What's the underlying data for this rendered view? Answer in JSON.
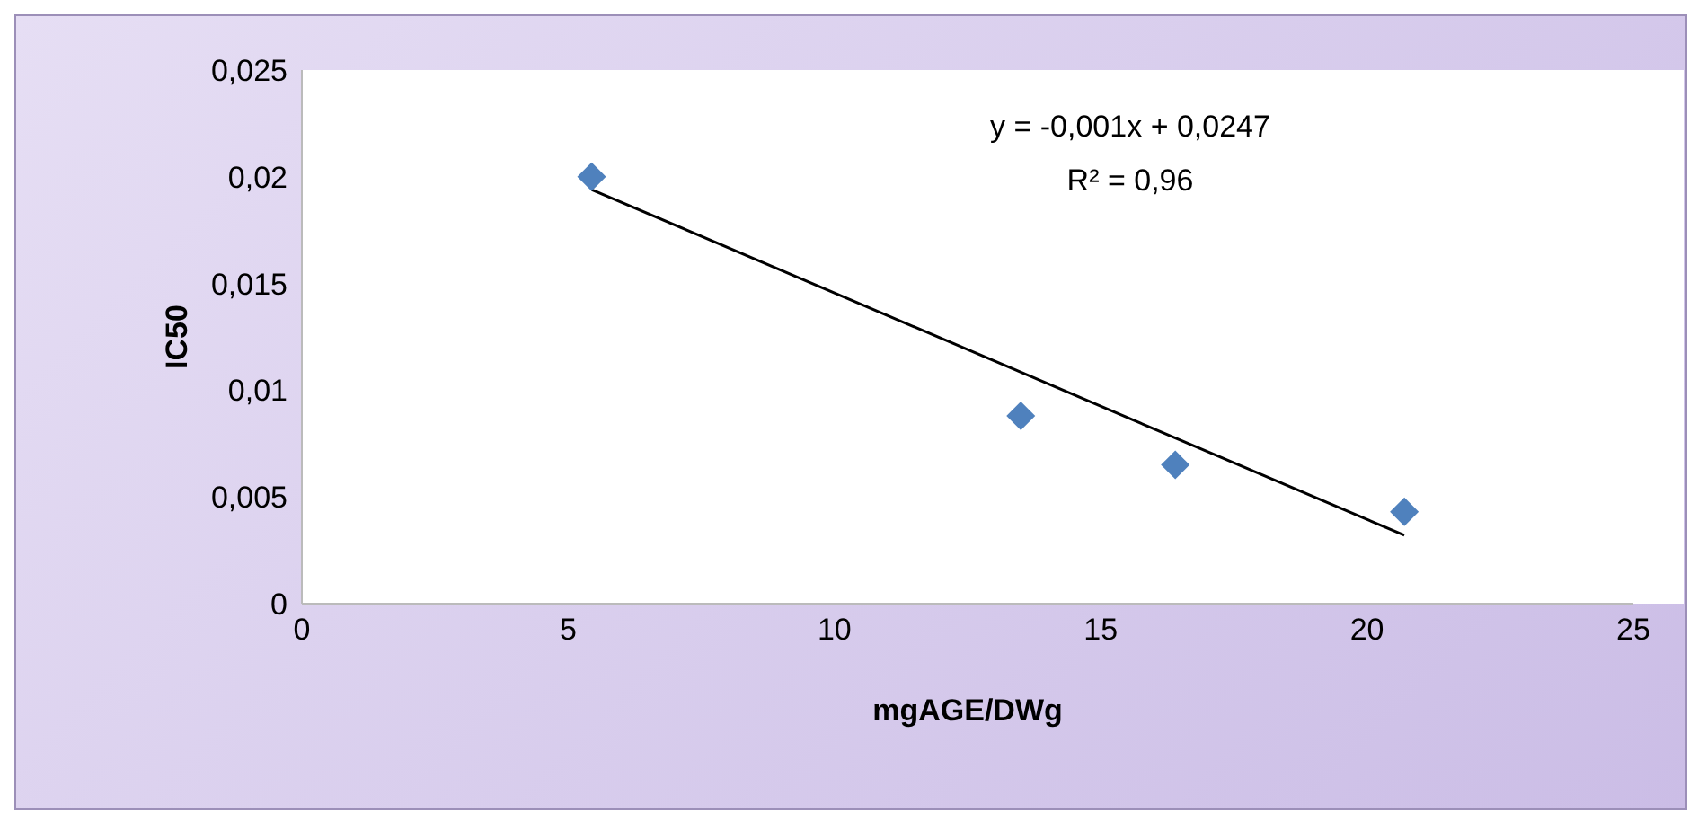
{
  "chart_data": {
    "type": "scatter",
    "xlabel": "mgAGE/DWg",
    "ylabel": "IC50",
    "xlim": [
      0,
      25
    ],
    "xticks": [
      0,
      5,
      10,
      15,
      20,
      25
    ],
    "ylim": [
      0,
      0.025
    ],
    "yticks": [
      {
        "value": 0,
        "label": "0"
      },
      {
        "value": 0.005,
        "label": "0,005"
      },
      {
        "value": 0.01,
        "label": "0,01"
      },
      {
        "value": 0.015,
        "label": "0,015"
      },
      {
        "value": 0.02,
        "label": "0,02"
      },
      {
        "value": 0.025,
        "label": "0,025"
      }
    ],
    "series": [
      {
        "color": "#4f81bd",
        "x": [
          5.44,
          13.5,
          16.4,
          20.7
        ],
        "values": [
          0.02,
          0.0088,
          0.0065,
          0.0043
        ]
      },
      {
        "type": "line",
        "marker": "none",
        "color": "#000000",
        "x": [
          5.44,
          20.7
        ],
        "values": [
          0.0194,
          0.0032
        ]
      }
    ],
    "marker": "diamond",
    "annotations": [
      "y = -0,001x + 0,0247",
      "R² = 0,96"
    ]
  }
}
